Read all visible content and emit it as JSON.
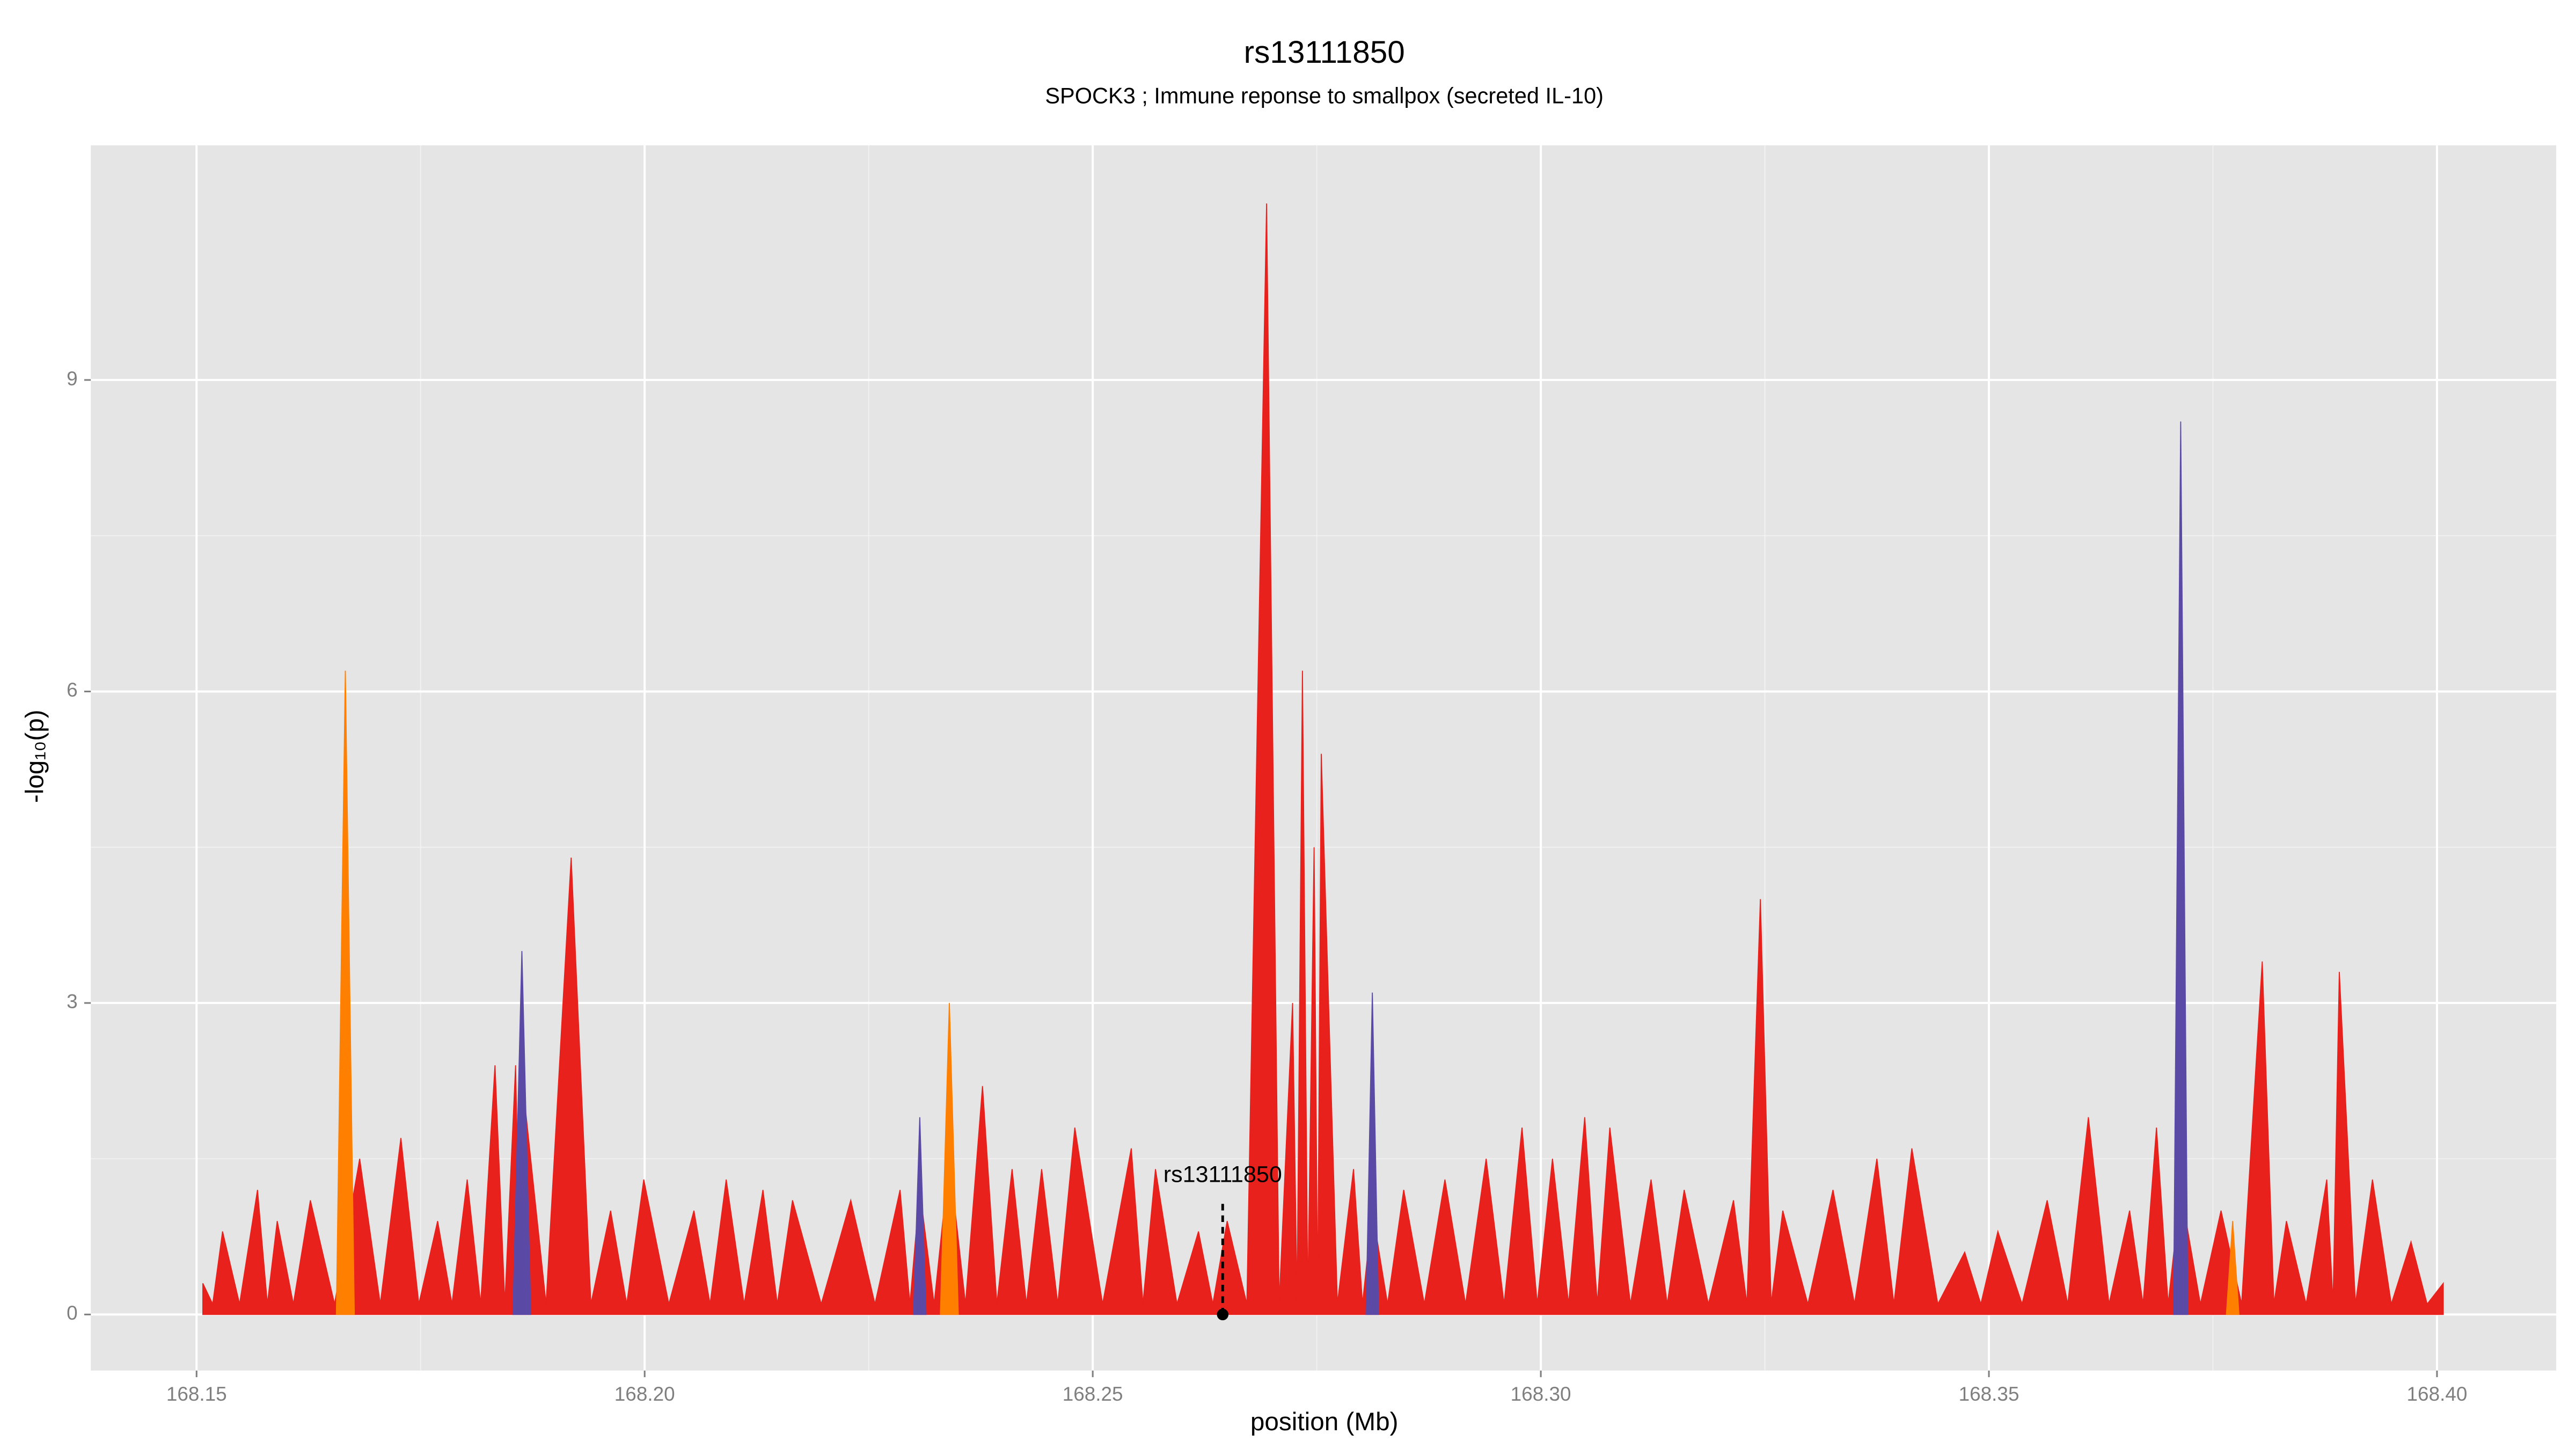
{
  "chart_data": {
    "type": "area",
    "title": "rs13111850",
    "subtitle": "SPOCK3 ; Immune reponse to smallpox (secreted IL-10)",
    "x_label": "position (Mb)",
    "y_label": "-log₁₀(p)",
    "xlim": [
      168.1382,
      168.4133
    ],
    "ylim": [
      -0.54,
      11.26
    ],
    "xticks": [
      168.15,
      {
        "value": 168.2,
        "label": "168.20"
      },
      168.25,
      {
        "value": 168.3,
        "label": "168.30"
      },
      168.35,
      {
        "value": 168.4,
        "label": "168.40"
      }
    ],
    "yticks": [
      0,
      3,
      6,
      9
    ],
    "grid": true,
    "series": [
      {
        "color": "#e8211d",
        "x": [
          168.1507,
          168.1518,
          168.1529,
          168.1548,
          168.1568,
          168.1579,
          168.159,
          168.1608,
          168.1627,
          168.1654,
          168.1682,
          168.1705,
          168.1728,
          168.1748,
          168.1769,
          168.1785,
          168.1802,
          168.1817,
          168.1833,
          168.1844,
          168.1856,
          168.1859,
          168.1863,
          168.189,
          168.1918,
          168.194,
          168.1962,
          168.198,
          168.1999,
          168.2027,
          168.2055,
          168.2073,
          168.2091,
          168.2111,
          168.2132,
          168.2148,
          168.2165,
          168.2197,
          168.223,
          168.2257,
          168.2285,
          168.2296,
          168.2307,
          168.2323,
          168.234,
          168.2358,
          168.2377,
          168.2393,
          168.241,
          168.2426,
          168.2443,
          168.2461,
          168.248,
          168.2511,
          168.2543,
          168.2556,
          168.257,
          168.2594,
          168.2618,
          168.2634,
          168.265,
          168.2672,
          168.2694,
          168.2708,
          168.2723,
          168.2728,
          168.2734,
          168.274,
          168.2747,
          168.2751,
          168.2755,
          168.2773,
          168.2791,
          168.2801,
          168.2812,
          168.2829,
          168.2847,
          168.287,
          168.2893,
          168.2916,
          168.2939,
          168.2959,
          168.2979,
          168.2996,
          168.3013,
          168.3031,
          168.3049,
          168.3063,
          168.3077,
          168.31,
          168.3123,
          168.3141,
          168.316,
          168.3187,
          168.3215,
          168.323,
          168.3245,
          168.3257,
          168.327,
          168.3298,
          168.3326,
          168.335,
          168.3375,
          168.3394,
          168.3414,
          168.3443,
          168.3473,
          168.3491,
          168.351,
          168.3537,
          168.3565,
          168.3588,
          168.3611,
          168.3634,
          168.3657,
          168.3672,
          168.3687,
          168.37,
          168.3714,
          168.3736,
          168.3759,
          168.3782,
          168.3805,
          168.3818,
          168.3832,
          168.3854,
          168.3877,
          168.3884,
          168.3891,
          168.3909,
          168.3928,
          168.3949,
          168.3971,
          168.3989,
          168.4007
        ],
        "values": [
          0.3,
          0.1,
          0.8,
          0.1,
          1.2,
          0.1,
          0.9,
          0.1,
          1.1,
          0.1,
          1.5,
          0.1,
          1.7,
          0.1,
          0.9,
          0.1,
          1.3,
          0.1,
          2.4,
          0.1,
          2.4,
          1.0,
          2.3,
          0.1,
          4.4,
          0.1,
          1.0,
          0.1,
          1.3,
          0.1,
          1.0,
          0.1,
          1.3,
          0.1,
          1.2,
          0.1,
          1.1,
          0.1,
          1.1,
          0.1,
          1.2,
          0.1,
          1.2,
          0.1,
          1.5,
          0.1,
          2.2,
          0.1,
          1.4,
          0.1,
          1.4,
          0.1,
          1.8,
          0.1,
          1.6,
          0.1,
          1.4,
          0.1,
          0.8,
          0.1,
          0.9,
          0.1,
          10.7,
          0.1,
          3.0,
          0.1,
          6.2,
          0.1,
          4.5,
          0.1,
          5.4,
          0.1,
          1.4,
          0.1,
          1.0,
          0.1,
          1.2,
          0.1,
          1.3,
          0.1,
          1.5,
          0.1,
          1.8,
          0.1,
          1.5,
          0.1,
          1.9,
          0.1,
          1.8,
          0.1,
          1.3,
          0.1,
          1.2,
          0.1,
          1.1,
          0.1,
          4.0,
          0.1,
          1.0,
          0.1,
          1.2,
          0.1,
          1.5,
          0.1,
          1.6,
          0.1,
          0.6,
          0.1,
          0.8,
          0.1,
          1.1,
          0.1,
          1.9,
          0.1,
          1.0,
          0.1,
          1.8,
          0.1,
          1.2,
          0.1,
          1.0,
          0.1,
          3.4,
          0.1,
          0.9,
          0.1,
          1.3,
          0.1,
          3.3,
          0.1,
          1.3,
          0.1,
          0.7,
          0.1,
          0.3
        ]
      },
      {
        "color": "#ff7f00",
        "x": [
          168.1656,
          168.1666,
          168.1676,
          168.2,
          168.233,
          168.234,
          168.235,
          168.3,
          168.3765,
          168.3772,
          168.3779
        ],
        "values": [
          0,
          6.2,
          0,
          null,
          0,
          3.0,
          0,
          null,
          0,
          0.9,
          0
        ]
      },
      {
        "color": "#5b4aa5",
        "x": [
          168.1853,
          168.1863,
          168.1873,
          168.2,
          168.23,
          168.2307,
          168.2314,
          168.25,
          168.2805,
          168.2812,
          168.2819,
          168.3,
          168.3706,
          168.3714,
          168.3722
        ],
        "values": [
          0,
          3.5,
          0,
          null,
          0,
          1.9,
          0,
          null,
          0,
          3.1,
          0,
          null,
          0,
          8.6,
          0
        ]
      }
    ],
    "annotation": {
      "text": "rs13111850",
      "x": 168.2645,
      "y": 0
    }
  }
}
